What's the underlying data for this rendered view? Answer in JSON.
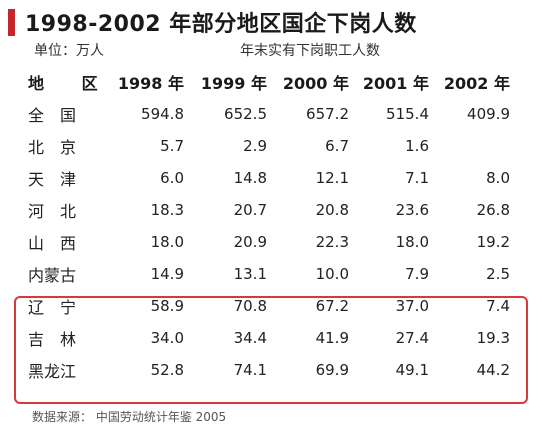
{
  "title": "1998-2002 年部分地区国企下岗人数",
  "unit": "单位：万人",
  "note": "年末实有下岗职工人数",
  "headers": [
    "地 区",
    "1998 年",
    "1999 年",
    "2000 年",
    "2001 年",
    "2002 年"
  ],
  "rows": [
    {
      "region": "全　国",
      "v": [
        "594.8",
        "652.5",
        "657.2",
        "515.4",
        "409.9"
      ]
    },
    {
      "region": "北　京",
      "v": [
        "5.7",
        "2.9",
        "6.7",
        "1.6",
        ""
      ]
    },
    {
      "region": "天　津",
      "v": [
        "6.0",
        "14.8",
        "12.1",
        "7.1",
        "8.0"
      ]
    },
    {
      "region": "河　北",
      "v": [
        "18.3",
        "20.7",
        "20.8",
        "23.6",
        "26.8"
      ]
    },
    {
      "region": "山　西",
      "v": [
        "18.0",
        "20.9",
        "22.3",
        "18.0",
        "19.2"
      ]
    },
    {
      "region": "内蒙古",
      "v": [
        "14.9",
        "13.1",
        "10.0",
        "7.9",
        "2.5"
      ]
    },
    {
      "region": "辽　宁",
      "v": [
        "58.9",
        "70.8",
        "67.2",
        "37.0",
        "7.4"
      ]
    },
    {
      "region": "吉　林",
      "v": [
        "34.0",
        "34.4",
        "41.9",
        "27.4",
        "19.3"
      ]
    },
    {
      "region": "黑龙江",
      "v": [
        "52.8",
        "74.1",
        "69.9",
        "49.1",
        "44.2"
      ]
    }
  ],
  "source": "数据来源：  中国劳动统计年鉴 2005",
  "colors": {
    "accent": "#c1272d",
    "highlight_border": "#d9373b"
  }
}
